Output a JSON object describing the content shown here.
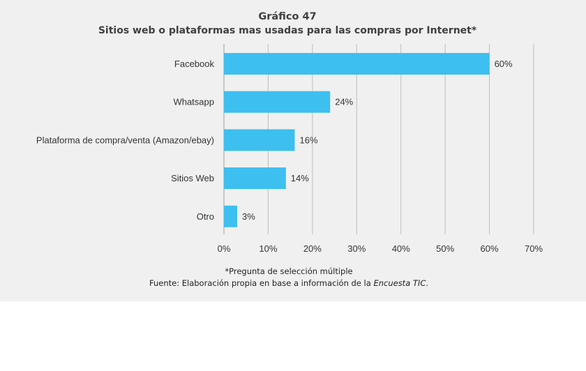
{
  "chart_data": {
    "type": "bar",
    "orientation": "horizontal",
    "title": "Gráfico 47",
    "subtitle": "Sitios web o plataformas mas usadas para las compras por Internet*",
    "categories": [
      "Facebook",
      "Whatsapp",
      "Plataforma de compra/venta (Amazon/ebay)",
      "Sitios Web",
      "Otro"
    ],
    "values": [
      60,
      24,
      16,
      14,
      3
    ],
    "value_labels": [
      "60%",
      "24%",
      "16%",
      "14%",
      "3%"
    ],
    "xlim": [
      0,
      70
    ],
    "xticks": [
      0,
      10,
      20,
      30,
      40,
      50,
      60,
      70
    ],
    "xtick_labels": [
      "0%",
      "10%",
      "20%",
      "30%",
      "40%",
      "50%",
      "60%",
      "70%"
    ],
    "xlabel": "",
    "ylabel": "",
    "grid": "vertical",
    "bar_color": "#3dbfef",
    "grid_color": "#bdbdbd",
    "background_color": "#f0f0f0"
  },
  "notes": {
    "footnote": "*Pregunta de selección múltiple",
    "source_prefix": "Fuente: Elaboración propia en base a información de la ",
    "source_italic": "Encuesta TIC",
    "source_suffix": "."
  }
}
